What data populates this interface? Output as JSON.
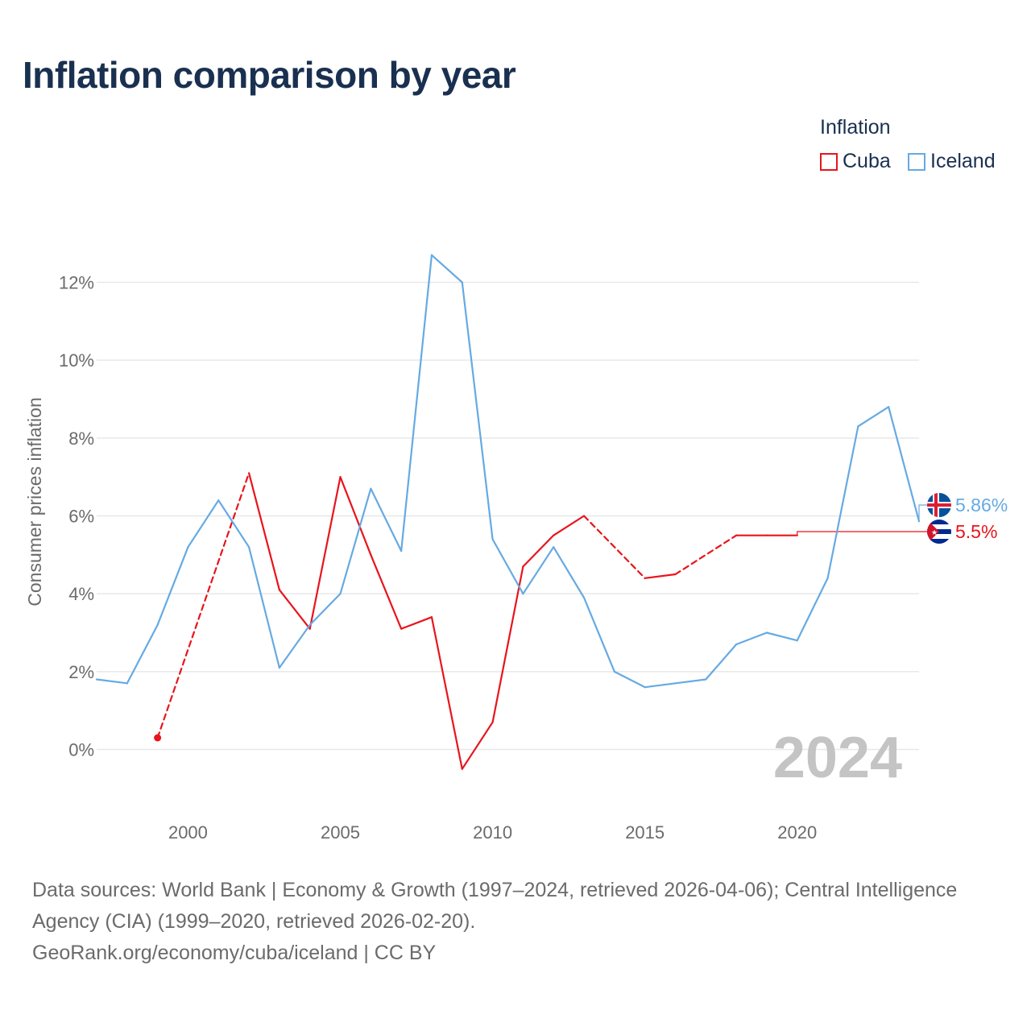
{
  "title": "Inflation comparison by year",
  "legend": {
    "title": "Inflation",
    "items": [
      {
        "label": "Cuba",
        "color": "#e8141c"
      },
      {
        "label": "Iceland",
        "color": "#66aae2"
      }
    ]
  },
  "chart_data": {
    "type": "line",
    "title": "Inflation comparison by year",
    "xlabel": "",
    "ylabel": "Consumer prices inflation",
    "xlim": [
      1997,
      2024
    ],
    "ylim": [
      -1.5,
      13.5
    ],
    "x_ticks": [
      2000,
      2005,
      2010,
      2015,
      2020
    ],
    "y_ticks": [
      0,
      2,
      4,
      6,
      8,
      10,
      12
    ],
    "y_tick_labels": [
      "0%",
      "2%",
      "4%",
      "6%",
      "8%",
      "10%",
      "12%"
    ],
    "grid": true,
    "watermark_year": "2024",
    "series": [
      {
        "name": "Cuba",
        "color": "#e8141c",
        "points": [
          {
            "x": 1999,
            "y": 0.3
          },
          {
            "x": 2002,
            "y": 7.1
          },
          {
            "x": 2003,
            "y": 4.1
          },
          {
            "x": 2004,
            "y": 3.1
          },
          {
            "x": 2005,
            "y": 7.0
          },
          {
            "x": 2006,
            "y": 5.0
          },
          {
            "x": 2007,
            "y": 3.1
          },
          {
            "x": 2008,
            "y": 3.4
          },
          {
            "x": 2009,
            "y": -0.5
          },
          {
            "x": 2010,
            "y": 0.7
          },
          {
            "x": 2011,
            "y": 4.7
          },
          {
            "x": 2012,
            "y": 5.5
          },
          {
            "x": 2013,
            "y": 6.0
          },
          {
            "x": 2015,
            "y": 4.4
          },
          {
            "x": 2016,
            "y": 4.5
          },
          {
            "x": 2018,
            "y": 5.5
          },
          {
            "x": 2019,
            "y": 5.5
          },
          {
            "x": 2020,
            "y": 5.5
          }
        ],
        "end_label": "5.5%"
      },
      {
        "name": "Iceland",
        "color": "#66aae2",
        "points": [
          {
            "x": 1997,
            "y": 1.8
          },
          {
            "x": 1998,
            "y": 1.7
          },
          {
            "x": 1999,
            "y": 3.2
          },
          {
            "x": 2000,
            "y": 5.2
          },
          {
            "x": 2001,
            "y": 6.4
          },
          {
            "x": 2002,
            "y": 5.2
          },
          {
            "x": 2003,
            "y": 2.1
          },
          {
            "x": 2004,
            "y": 3.2
          },
          {
            "x": 2005,
            "y": 4.0
          },
          {
            "x": 2006,
            "y": 6.7
          },
          {
            "x": 2007,
            "y": 5.1
          },
          {
            "x": 2008,
            "y": 12.7
          },
          {
            "x": 2009,
            "y": 12.0
          },
          {
            "x": 2010,
            "y": 5.4
          },
          {
            "x": 2011,
            "y": 4.0
          },
          {
            "x": 2012,
            "y": 5.2
          },
          {
            "x": 2013,
            "y": 3.9
          },
          {
            "x": 2014,
            "y": 2.0
          },
          {
            "x": 2015,
            "y": 1.6
          },
          {
            "x": 2016,
            "y": 1.7
          },
          {
            "x": 2017,
            "y": 1.8
          },
          {
            "x": 2018,
            "y": 2.7
          },
          {
            "x": 2019,
            "y": 3.0
          },
          {
            "x": 2020,
            "y": 2.8
          },
          {
            "x": 2021,
            "y": 4.4
          },
          {
            "x": 2022,
            "y": 8.3
          },
          {
            "x": 2023,
            "y": 8.8
          },
          {
            "x": 2024,
            "y": 5.86
          }
        ],
        "end_label": "5.86%"
      }
    ]
  },
  "footer": {
    "sources": "Data sources: World Bank | Economy & Growth (1997–2024, retrieved 2026-04-06); Central Intelligence Agency (CIA) (1999–2020, retrieved 2026-02-20).",
    "credit": "GeoRank.org/economy/cuba/iceland | CC BY"
  }
}
